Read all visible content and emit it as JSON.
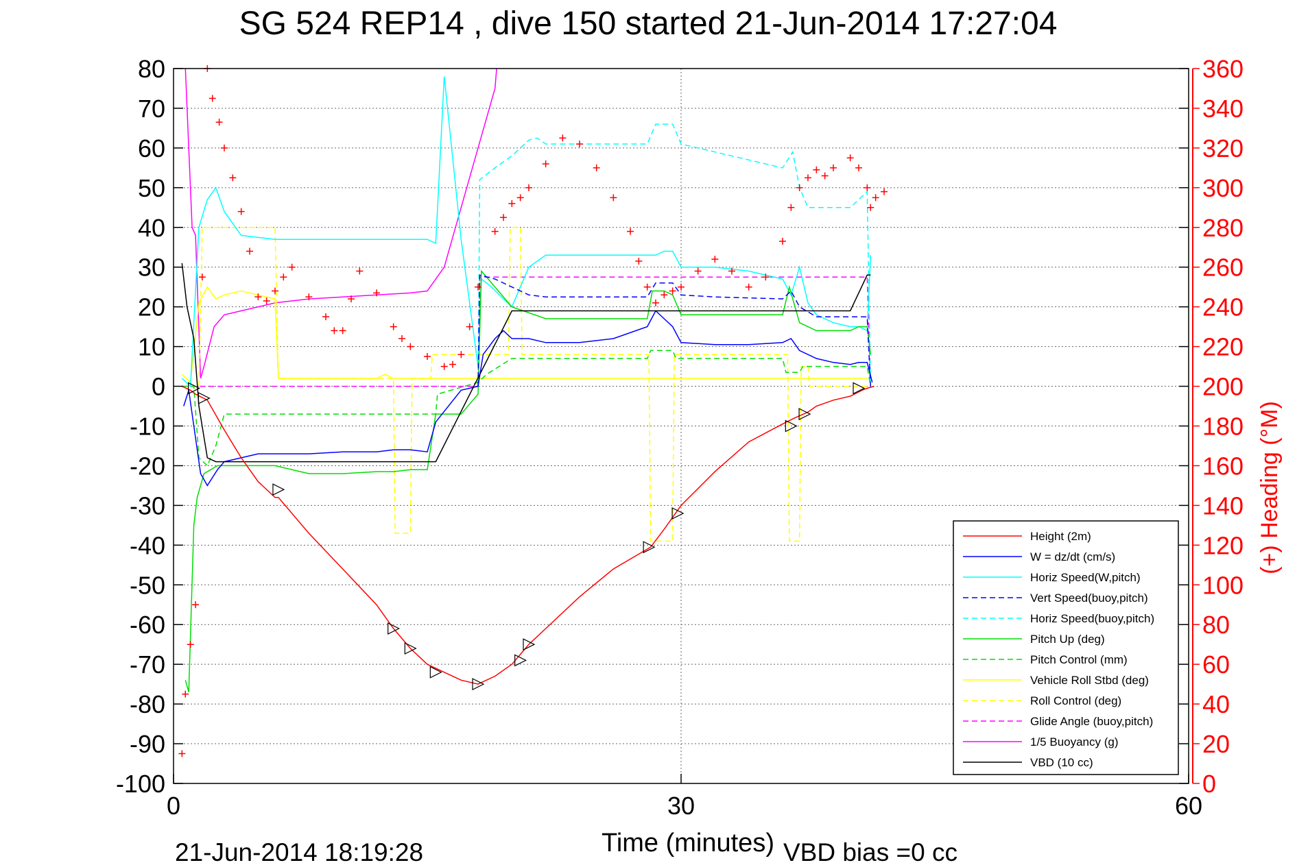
{
  "chart_data": {
    "type": "line",
    "title": "SG 524   REP14  , dive 150 started 21-Jun-2014 17:27:04",
    "xlabel": "Time (minutes)",
    "ylabel_right": "(+) Heading (°M)",
    "footer_left": "21-Jun-2014 18:19:28",
    "footer_right": "VBD bias =0 cc",
    "xlim": [
      0,
      60
    ],
    "ylim_left": [
      -100,
      80
    ],
    "ylim_right": [
      0,
      360
    ],
    "x_ticks": [
      "0",
      "30",
      "60"
    ],
    "y_ticks_left": [
      "80",
      "70",
      "60",
      "50",
      "40",
      "30",
      "20",
      "10",
      "0",
      "-10",
      "-20",
      "-30",
      "-40",
      "-50",
      "-60",
      "-70",
      "-80",
      "-90",
      "-100"
    ],
    "y_ticks_right": [
      "360",
      "340",
      "320",
      "300",
      "280",
      "260",
      "240",
      "220",
      "200",
      "180",
      "160",
      "140",
      "120",
      "100",
      "80",
      "60",
      "40",
      "20",
      "0"
    ],
    "grid": true,
    "legend_position": "bottom-right",
    "colors": {
      "height": "#ff0000",
      "w": "#0000ff",
      "horiz_speed_w_pitch": "#00ffff",
      "vert_speed_buoy_pitch": "#0000ff",
      "horiz_speed_buoy_pitch": "#00ffff",
      "pitch_up": "#00dd00",
      "pitch_control": "#00dd00",
      "roll": "#ffff00",
      "roll_control": "#ffff00",
      "glide_angle": "#ff00ff",
      "buoyancy": "#ff00ff",
      "vbd": "#000000",
      "heading": "#ff0000"
    },
    "series": [
      {
        "key": "height",
        "name": "Height (2m)",
        "style": "solid",
        "x": [
          0.5,
          1,
          1.3,
          2,
          3,
          4,
          5,
          6,
          6.2,
          8,
          10,
          12,
          13,
          14,
          15,
          16,
          17,
          18,
          19,
          20,
          21,
          22,
          24,
          26,
          28,
          28.2,
          29,
          30,
          32,
          34,
          36,
          36.7,
          37.5,
          38,
          39,
          40,
          40.7,
          41,
          41.4
        ],
        "y": [
          0,
          -1,
          -2,
          -3.5,
          -11,
          -18,
          -24,
          -28,
          -28,
          -37,
          -46,
          -55,
          -61,
          -66,
          -70,
          -72,
          -74,
          -75,
          -73,
          -70,
          -65,
          -61,
          -53,
          -46,
          -41,
          -40.5,
          -36,
          -30,
          -21.5,
          -14,
          -9.5,
          -8,
          -6.5,
          -5,
          -3.5,
          -2.5,
          -1,
          -0.5,
          0
        ]
      },
      {
        "key": "w",
        "name": "W = dz/dt (cm/s)",
        "style": "solid",
        "x": [
          0.6,
          0.9,
          1.2,
          1.6,
          2.0,
          2.6,
          3.0,
          4,
          5,
          6,
          8,
          10,
          12,
          13,
          14,
          15,
          15.5,
          17,
          18,
          18.3,
          19,
          19.5,
          20,
          21,
          22,
          24,
          26,
          28,
          28.5,
          29,
          29.5,
          30,
          32,
          34,
          36,
          36.5,
          37,
          38,
          39,
          40,
          40.5,
          41,
          41.3
        ],
        "y": [
          -5,
          -1,
          -10,
          -22,
          -25,
          -21,
          -19,
          -18,
          -17,
          -17,
          -17,
          -16.5,
          -16.5,
          -16,
          -16,
          -16.5,
          -9,
          -1,
          0,
          8,
          12,
          14,
          12,
          12,
          11,
          11,
          12,
          15,
          19,
          17,
          15,
          11,
          10.5,
          10.5,
          11,
          12,
          9,
          7,
          6,
          5.5,
          6,
          6,
          1
        ]
      },
      {
        "key": "horiz_speed_w_pitch",
        "name": "Horiz Speed(W,pitch)",
        "style": "solid",
        "x": [
          0.5,
          1,
          1.5,
          2,
          2.5,
          3,
          4,
          6,
          8,
          10,
          12,
          14,
          15,
          15.5,
          16,
          17,
          18,
          18.2,
          18.8,
          19.5,
          20,
          21,
          22,
          24,
          26,
          28,
          28.5,
          29,
          29.5,
          30,
          32,
          34,
          36,
          36.5,
          37,
          37.5,
          38,
          39,
          40,
          40.5,
          41,
          41.2
        ],
        "y": [
          2,
          0,
          40,
          47,
          50,
          44,
          38,
          37,
          37,
          37,
          37,
          37,
          37,
          36,
          78,
          37,
          5,
          27,
          25,
          22,
          20,
          30,
          33,
          33,
          33,
          33,
          33,
          34,
          34,
          30,
          30,
          29,
          27,
          23,
          30,
          21,
          18,
          16,
          15,
          15,
          14,
          33
        ]
      },
      {
        "key": "vert_speed_buoy_pitch",
        "name": "Vert Speed(buoy,pitch)",
        "style": "dashed",
        "x": [
          18,
          18.1,
          19,
          20,
          21,
          22,
          24,
          28,
          28.5,
          29.5,
          30,
          32,
          36,
          36.5,
          37,
          38,
          41,
          41.2
        ],
        "y": [
          0,
          28,
          27,
          25,
          23,
          22.5,
          22.5,
          22.5,
          26,
          26,
          23,
          22.5,
          22,
          24,
          20,
          17.5,
          17.5,
          0
        ]
      },
      {
        "key": "horiz_speed_buoy_pitch",
        "name": "Horiz Speed(buoy,pitch)",
        "style": "dashed",
        "x": [
          18,
          18.1,
          19,
          20,
          21,
          21.5,
          22,
          24,
          26,
          28,
          28.5,
          29.5,
          30,
          32,
          34,
          36,
          36.6,
          37,
          37.5,
          38,
          40,
          41,
          41.2
        ],
        "y": [
          0,
          52,
          55,
          58,
          62,
          62.5,
          61,
          61,
          61,
          61,
          66,
          66,
          61,
          59,
          57,
          55,
          59,
          50,
          45,
          45,
          45,
          49,
          0
        ]
      },
      {
        "key": "pitch_up",
        "name": "Pitch Up (deg)",
        "style": "solid",
        "x": [
          0.7,
          0.9,
          1.2,
          1.4,
          1.8,
          2.2,
          2.6,
          4,
          6,
          8,
          10,
          12,
          13,
          14,
          15,
          15.5,
          16,
          17,
          18,
          18.2,
          20,
          22,
          24,
          26,
          28,
          28.3,
          29,
          29.5,
          30,
          32,
          34,
          36,
          36.4,
          37,
          38,
          39,
          40,
          40.5,
          41,
          41.2
        ],
        "y": [
          -74,
          -77,
          -35,
          -28,
          -22,
          -21,
          -20,
          -20,
          -20,
          -22,
          -22,
          -21.5,
          -21.5,
          -21,
          -21,
          -7,
          -7,
          -7,
          -2,
          29,
          20,
          17,
          17,
          17,
          17,
          24,
          24,
          23,
          18,
          18,
          18,
          18,
          25,
          16,
          14,
          14,
          14,
          15,
          15,
          8
        ]
      },
      {
        "key": "pitch_control",
        "name": "Pitch Control (mm)",
        "style": "dashed",
        "x": [
          0.5,
          1.2,
          1.5,
          2,
          2.5,
          3,
          4,
          8,
          12,
          14,
          15.5,
          15.6,
          18,
          18.5,
          20,
          20.5,
          28,
          28.2,
          29.5,
          29.7,
          36,
          36.2,
          37,
          37.2,
          41,
          41.2
        ],
        "y": [
          0,
          0,
          -18,
          -20,
          -15,
          -7,
          -7,
          -7,
          -7,
          -7,
          -7,
          -2,
          1,
          3,
          7,
          7,
          7,
          9,
          9,
          7,
          7,
          3.5,
          3.5,
          5,
          5,
          0
        ]
      },
      {
        "key": "roll",
        "name": "Vehicle Roll Stbd (deg)",
        "style": "solid",
        "x": [
          0.5,
          1,
          1.5,
          2,
          2.5,
          3,
          4,
          6,
          6.2,
          8,
          10,
          12,
          12.5,
          13,
          14,
          16,
          18,
          18.5,
          20,
          21,
          22,
          24,
          26,
          28,
          30,
          32,
          34,
          36,
          36.5,
          37,
          38,
          40,
          41
        ],
        "y": [
          3,
          1,
          21,
          25,
          22,
          23,
          24,
          22,
          2,
          2,
          2,
          2,
          3,
          2,
          2,
          2,
          2,
          2,
          2,
          2,
          2,
          2,
          2,
          2,
          2,
          2,
          2,
          2,
          2,
          2,
          2,
          2,
          2
        ]
      },
      {
        "key": "roll_control",
        "name": "Roll Control (deg)",
        "style": "dashed",
        "x": [
          0.5,
          1.5,
          1.7,
          6,
          6.2,
          13,
          13.1,
          14,
          14.1,
          15.2,
          15.3,
          19.8,
          19.9,
          20.5,
          20.6,
          28.1,
          28.2,
          29.5,
          29.6,
          36.3,
          36.4,
          37,
          37.1,
          37.5,
          37.6,
          41
        ],
        "y": [
          0,
          0,
          40,
          40,
          2,
          2,
          -37,
          -37,
          2,
          2,
          8,
          8,
          40,
          40,
          8,
          8,
          -39,
          -39,
          8,
          8,
          -39,
          -39,
          5,
          5,
          0,
          0
        ]
      },
      {
        "key": "glide_angle",
        "name": "Glide Angle (buoy,pitch)",
        "style": "dashed",
        "x": [
          0.5,
          18,
          18.1,
          41,
          41.2
        ],
        "y": [
          0,
          0,
          27.5,
          27.5,
          0
        ]
      },
      {
        "key": "buoyancy",
        "name": "1/5 Buoyancy (g)",
        "style": "solid",
        "x": [
          0.7,
          1.1,
          1.3,
          1.6,
          1.8,
          2.4,
          3,
          4,
          6,
          8,
          10,
          12,
          14,
          15,
          16,
          17,
          18,
          19,
          19.1
        ],
        "y": [
          80,
          40,
          38,
          2,
          5,
          15,
          18,
          19,
          21,
          22,
          22.5,
          23,
          23.5,
          24,
          30,
          45,
          60,
          75,
          80
        ]
      },
      {
        "key": "vbd",
        "name": "VBD (10 cc)",
        "style": "solid",
        "x": [
          0.5,
          0.8,
          1.2,
          1.5,
          2,
          2.5,
          15.3,
          15.5,
          20,
          20.1,
          28,
          36,
          40,
          41,
          41.2
        ],
        "y": [
          31,
          20,
          12,
          -5,
          -18,
          -19,
          -19,
          -19,
          19,
          19,
          19,
          19,
          19,
          28,
          28
        ]
      }
    ],
    "heading_series": {
      "name": "(+) Heading (°M)",
      "marker": "+",
      "x": [
        0.5,
        0.7,
        1,
        1.3,
        1.7,
        2,
        2.3,
        2.7,
        3,
        3.5,
        4,
        4.5,
        5,
        5.5,
        6,
        6.5,
        7,
        8,
        9,
        9.5,
        10,
        10.5,
        11,
        12,
        13,
        13.5,
        14,
        15,
        16,
        16.5,
        17,
        17.5,
        18,
        19,
        19.5,
        20,
        20.5,
        21,
        22,
        23,
        24,
        25,
        26,
        27,
        27.5,
        28,
        28.5,
        29,
        29.5,
        30,
        31,
        32,
        33,
        34,
        35,
        36,
        36.5,
        37,
        37.5,
        38,
        38.5,
        39,
        40,
        40.5,
        41,
        41.2,
        41.5,
        42
      ],
      "y": [
        15,
        45,
        70,
        90,
        255,
        360,
        345,
        333,
        320,
        305,
        288,
        268,
        245,
        243,
        248,
        255,
        260,
        245,
        235,
        228,
        228,
        244,
        258,
        247,
        230,
        224,
        220,
        215,
        210,
        211,
        216,
        230,
        250,
        278,
        285,
        292,
        295,
        300,
        312,
        325,
        322,
        310,
        295,
        278,
        263,
        250,
        242,
        246,
        248,
        250,
        258,
        264,
        258,
        250,
        255,
        273,
        290,
        300,
        305,
        309,
        306,
        310,
        315,
        310,
        300,
        290,
        295,
        298
      ]
    },
    "markers": {
      "x": [
        1.2,
        1.8,
        6.2,
        13,
        14,
        15.5,
        18,
        20.5,
        21,
        28.1,
        29.8,
        36.5,
        37.3,
        40.5
      ],
      "y": [
        -0.5,
        -3,
        -26,
        -61,
        -66,
        -72,
        -75,
        -69,
        -65,
        -40.5,
        -32,
        -10,
        -7,
        -0.5
      ]
    }
  }
}
